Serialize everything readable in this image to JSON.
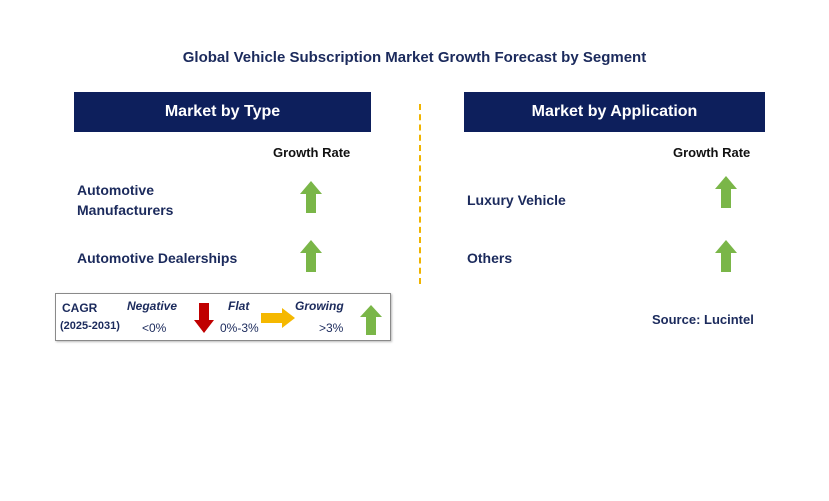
{
  "chart_data": {
    "type": "table",
    "title": "Global Vehicle Subscription Market Growth Forecast by Segment",
    "panels": [
      {
        "header": "Market by Type",
        "column_header": "Growth Rate",
        "rows": [
          {
            "label_line1": "Automotive",
            "label_line2": "Manufacturers",
            "growth": "Growing"
          },
          {
            "label": "Automotive Dealerships",
            "growth": "Growing"
          }
        ]
      },
      {
        "header": "Market by Application",
        "column_header": "Growth Rate",
        "rows": [
          {
            "label": "Luxury Vehicle",
            "growth": "Growing"
          },
          {
            "label": "Others",
            "growth": "Growing"
          }
        ]
      }
    ],
    "legend": {
      "cagr_label": "CAGR",
      "period": "(2025-2031)",
      "items": [
        {
          "name": "Negative",
          "range": "<0%",
          "color": "#c00000",
          "direction": "down"
        },
        {
          "name": "Flat",
          "range": "0%-3%",
          "color": "#f5b800",
          "direction": "right"
        },
        {
          "name": "Growing",
          "range": ">3%",
          "color": "#7ab648",
          "direction": "up"
        }
      ]
    },
    "source": "Source: Lucintel"
  }
}
